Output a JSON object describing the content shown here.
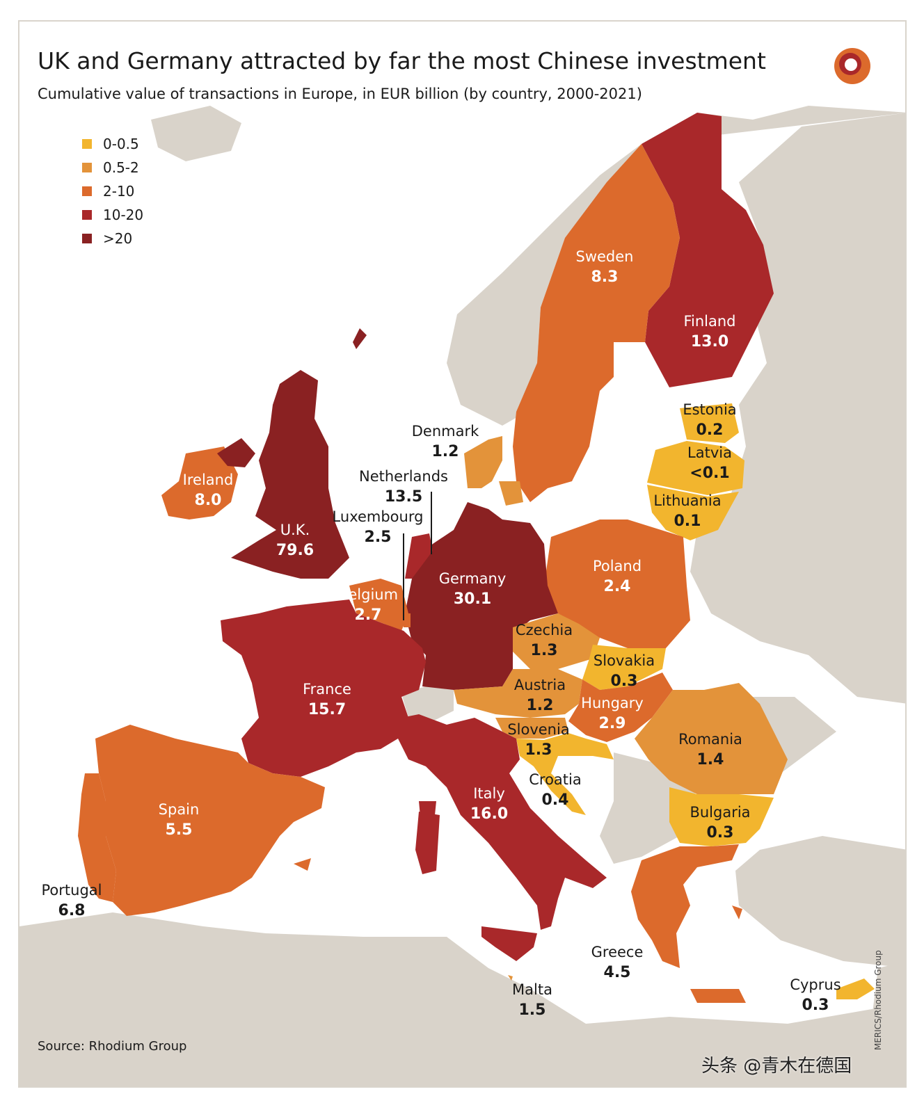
{
  "header": {
    "title": "UK and Germany attracted by far the most Chinese investment",
    "subtitle": "Cumulative value of transactions in Europe, in EUR billion (by country, 2000-2021)"
  },
  "legend": [
    {
      "label": "0-0.5",
      "color": "#f2b52e"
    },
    {
      "label": "0.5-2",
      "color": "#e3933a"
    },
    {
      "label": "2-10",
      "color": "#dc6a2c"
    },
    {
      "label": "10-20",
      "color": "#a9282a"
    },
    {
      "label": ">20",
      "color": "#8a2122"
    }
  ],
  "countries": [
    {
      "key": "uk",
      "name": "U.K.",
      "value": "79.6",
      "color": "#8a2122"
    },
    {
      "key": "germany",
      "name": "Germany",
      "value": "30.1",
      "color": "#8a2122"
    },
    {
      "key": "italy",
      "name": "Italy",
      "value": "16.0",
      "color": "#a9282a"
    },
    {
      "key": "france",
      "name": "France",
      "value": "15.7",
      "color": "#a9282a"
    },
    {
      "key": "netherlands",
      "name": "Netherlands",
      "value": "13.5",
      "color": "#a9282a"
    },
    {
      "key": "finland",
      "name": "Finland",
      "value": "13.0",
      "color": "#a9282a"
    },
    {
      "key": "sweden",
      "name": "Sweden",
      "value": "8.3",
      "color": "#dc6a2c"
    },
    {
      "key": "ireland",
      "name": "Ireland",
      "value": "8.0",
      "color": "#dc6a2c"
    },
    {
      "key": "portugal",
      "name": "Portugal",
      "value": "6.8",
      "color": "#dc6a2c"
    },
    {
      "key": "spain",
      "name": "Spain",
      "value": "5.5",
      "color": "#dc6a2c"
    },
    {
      "key": "greece",
      "name": "Greece",
      "value": "4.5",
      "color": "#dc6a2c"
    },
    {
      "key": "hungary",
      "name": "Hungary",
      "value": "2.9",
      "color": "#dc6a2c"
    },
    {
      "key": "belgium",
      "name": "Belgium",
      "value": "2.7",
      "color": "#dc6a2c"
    },
    {
      "key": "luxembourg",
      "name": "Luxembourg",
      "value": "2.5",
      "color": "#dc6a2c"
    },
    {
      "key": "poland",
      "name": "Poland",
      "value": "2.4",
      "color": "#dc6a2c"
    },
    {
      "key": "malta",
      "name": "Malta",
      "value": "1.5",
      "color": "#e3933a"
    },
    {
      "key": "romania",
      "name": "Romania",
      "value": "1.4",
      "color": "#e3933a"
    },
    {
      "key": "czechia",
      "name": "Czechia",
      "value": "1.3",
      "color": "#e3933a"
    },
    {
      "key": "slovenia",
      "name": "Slovenia",
      "value": "1.3",
      "color": "#e3933a"
    },
    {
      "key": "denmark",
      "name": "Denmark",
      "value": "1.2",
      "color": "#e3933a"
    },
    {
      "key": "austria",
      "name": "Austria",
      "value": "1.2",
      "color": "#e3933a"
    },
    {
      "key": "croatia",
      "name": "Croatia",
      "value": "0.4",
      "color": "#f2b52e"
    },
    {
      "key": "slovakia",
      "name": "Slovakia",
      "value": "0.3",
      "color": "#f2b52e"
    },
    {
      "key": "bulgaria",
      "name": "Bulgaria",
      "value": "0.3",
      "color": "#f2b52e"
    },
    {
      "key": "cyprus",
      "name": "Cyprus",
      "value": "0.3",
      "color": "#f2b52e"
    },
    {
      "key": "estonia",
      "name": "Estonia",
      "value": "0.2",
      "color": "#f2b52e"
    },
    {
      "key": "lithuania",
      "name": "Lithuania",
      "value": "0.1",
      "color": "#f2b52e"
    },
    {
      "key": "latvia",
      "name": "Latvia",
      "value": "<0.1",
      "color": "#f2b52e"
    }
  ],
  "colors": {
    "land_other": "#d9d3ca",
    "sea": "#ffffff"
  },
  "footer": {
    "source": "Source: Rhodium Group",
    "credit": "MERICS/Rhodium Group",
    "watermark": "头条 @青木在德国"
  }
}
